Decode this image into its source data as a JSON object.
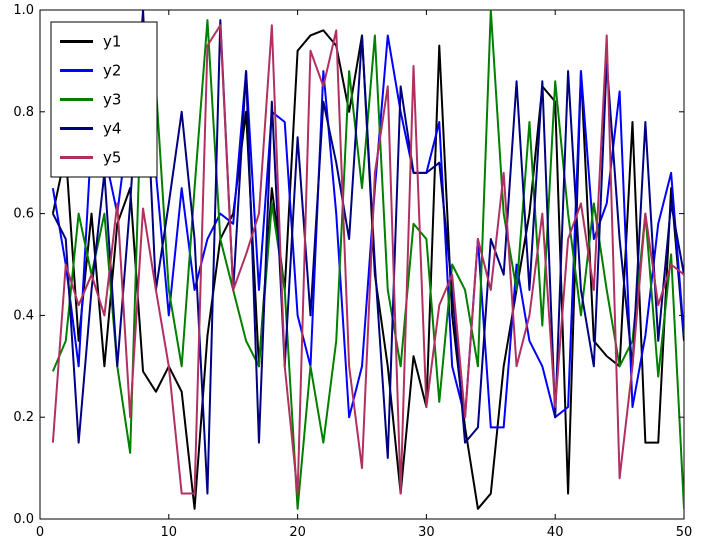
{
  "figure": {
    "background": "#ffffff",
    "frame_color": "#000000"
  },
  "chart_data": {
    "type": "line",
    "title": "",
    "xlabel": "",
    "ylabel": "",
    "xlim": [
      0,
      50
    ],
    "ylim": [
      0.0,
      1.0
    ],
    "xticks": [
      0,
      10,
      20,
      30,
      40,
      50
    ],
    "yticks": [
      0.0,
      0.2,
      0.4,
      0.6,
      0.8,
      1.0
    ],
    "grid": false,
    "legend_position": "upper-left",
    "line_width": 2,
    "x": [
      1,
      2,
      3,
      4,
      5,
      6,
      7,
      8,
      9,
      10,
      11,
      12,
      13,
      14,
      15,
      16,
      17,
      18,
      19,
      20,
      21,
      22,
      23,
      24,
      25,
      26,
      27,
      28,
      29,
      30,
      31,
      32,
      33,
      34,
      35,
      36,
      37,
      38,
      39,
      40,
      41,
      42,
      43,
      44,
      45,
      46,
      47,
      48,
      49,
      50
    ],
    "series": [
      {
        "name": "y1",
        "color": "#000000",
        "values": [
          0.6,
          0.72,
          0.35,
          0.6,
          0.3,
          0.58,
          0.65,
          0.29,
          0.25,
          0.3,
          0.25,
          0.02,
          0.36,
          0.55,
          0.6,
          0.8,
          0.3,
          0.65,
          0.45,
          0.92,
          0.95,
          0.96,
          0.93,
          0.8,
          0.95,
          0.48,
          0.3,
          0.05,
          0.32,
          0.22,
          0.93,
          0.4,
          0.18,
          0.02,
          0.05,
          0.3,
          0.45,
          0.6,
          0.85,
          0.82,
          0.05,
          0.88,
          0.35,
          0.32,
          0.3,
          0.78,
          0.15,
          0.15,
          0.65,
          0.35
        ]
      },
      {
        "name": "y2",
        "color": "#0000ff",
        "values": [
          0.65,
          0.5,
          0.3,
          0.75,
          0.72,
          0.6,
          0.8,
          0.95,
          0.68,
          0.4,
          0.65,
          0.45,
          0.55,
          0.6,
          0.58,
          0.88,
          0.45,
          0.8,
          0.78,
          0.4,
          0.3,
          0.88,
          0.6,
          0.2,
          0.3,
          0.65,
          0.95,
          0.8,
          0.68,
          0.68,
          0.78,
          0.3,
          0.2,
          0.55,
          0.18,
          0.18,
          0.5,
          0.35,
          0.3,
          0.2,
          0.22,
          0.88,
          0.55,
          0.62,
          0.84,
          0.22,
          0.36,
          0.58,
          0.68,
          0.36
        ]
      },
      {
        "name": "y3",
        "color": "#007f00",
        "values": [
          0.29,
          0.35,
          0.6,
          0.48,
          0.6,
          0.3,
          0.13,
          0.94,
          0.85,
          0.45,
          0.3,
          0.65,
          0.98,
          0.55,
          0.45,
          0.35,
          0.3,
          0.62,
          0.45,
          0.02,
          0.3,
          0.15,
          0.35,
          0.88,
          0.65,
          0.95,
          0.45,
          0.3,
          0.58,
          0.55,
          0.23,
          0.5,
          0.45,
          0.3,
          1.0,
          0.6,
          0.45,
          0.78,
          0.38,
          0.86,
          0.6,
          0.4,
          0.62,
          0.45,
          0.3,
          0.35,
          0.6,
          0.28,
          0.52,
          0.02
        ]
      },
      {
        "name": "y4",
        "color": "#000080",
        "values": [
          0.6,
          0.55,
          0.15,
          0.45,
          0.68,
          0.3,
          0.62,
          1.0,
          0.45,
          0.62,
          0.8,
          0.55,
          0.05,
          0.98,
          0.45,
          0.88,
          0.15,
          0.82,
          0.3,
          0.75,
          0.4,
          0.82,
          0.7,
          0.55,
          0.95,
          0.5,
          0.12,
          0.85,
          0.68,
          0.68,
          0.7,
          0.45,
          0.15,
          0.18,
          0.55,
          0.48,
          0.86,
          0.45,
          0.86,
          0.2,
          0.88,
          0.45,
          0.3,
          0.9,
          0.55,
          0.3,
          0.78,
          0.35,
          0.62,
          0.48
        ]
      },
      {
        "name": "y5",
        "color": "#b03060",
        "values": [
          0.15,
          0.5,
          0.42,
          0.48,
          0.4,
          0.62,
          0.2,
          0.61,
          0.45,
          0.3,
          0.05,
          0.05,
          0.93,
          0.97,
          0.45,
          0.52,
          0.6,
          0.97,
          0.3,
          0.05,
          0.92,
          0.85,
          0.96,
          0.3,
          0.1,
          0.68,
          0.85,
          0.05,
          0.89,
          0.22,
          0.42,
          0.48,
          0.2,
          0.55,
          0.45,
          0.68,
          0.3,
          0.4,
          0.6,
          0.22,
          0.55,
          0.62,
          0.45,
          0.95,
          0.08,
          0.3,
          0.6,
          0.42,
          0.5,
          0.48
        ]
      }
    ]
  }
}
